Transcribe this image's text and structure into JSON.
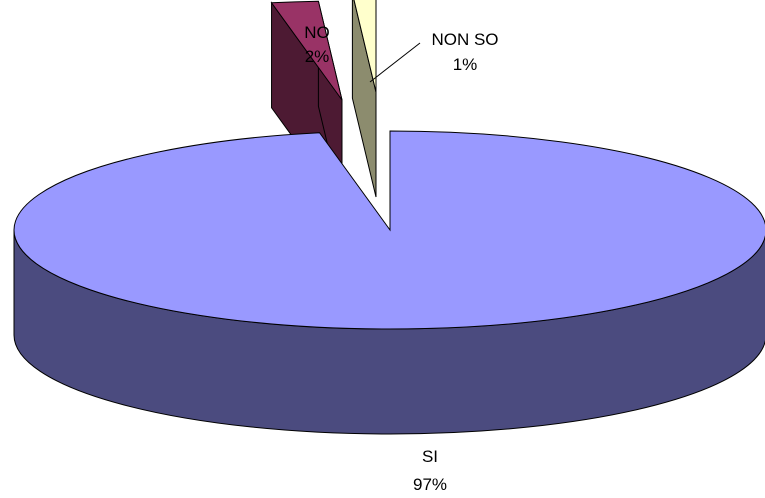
{
  "chart_data": {
    "type": "pie",
    "style": "3d-exploded",
    "legend": "none",
    "slices": [
      {
        "category": "SI",
        "value": 97,
        "value_label": "97%",
        "color": "#9999ff",
        "side_color": "#4b4b7f"
      },
      {
        "category": "NO",
        "value": 2,
        "value_label": "2%",
        "color": "#993366",
        "side_color": "#4d1a33"
      },
      {
        "category": "NON SO",
        "value": 1,
        "value_label": "1%",
        "color": "#ffffcc",
        "side_color": "#8c8c6e"
      }
    ]
  }
}
